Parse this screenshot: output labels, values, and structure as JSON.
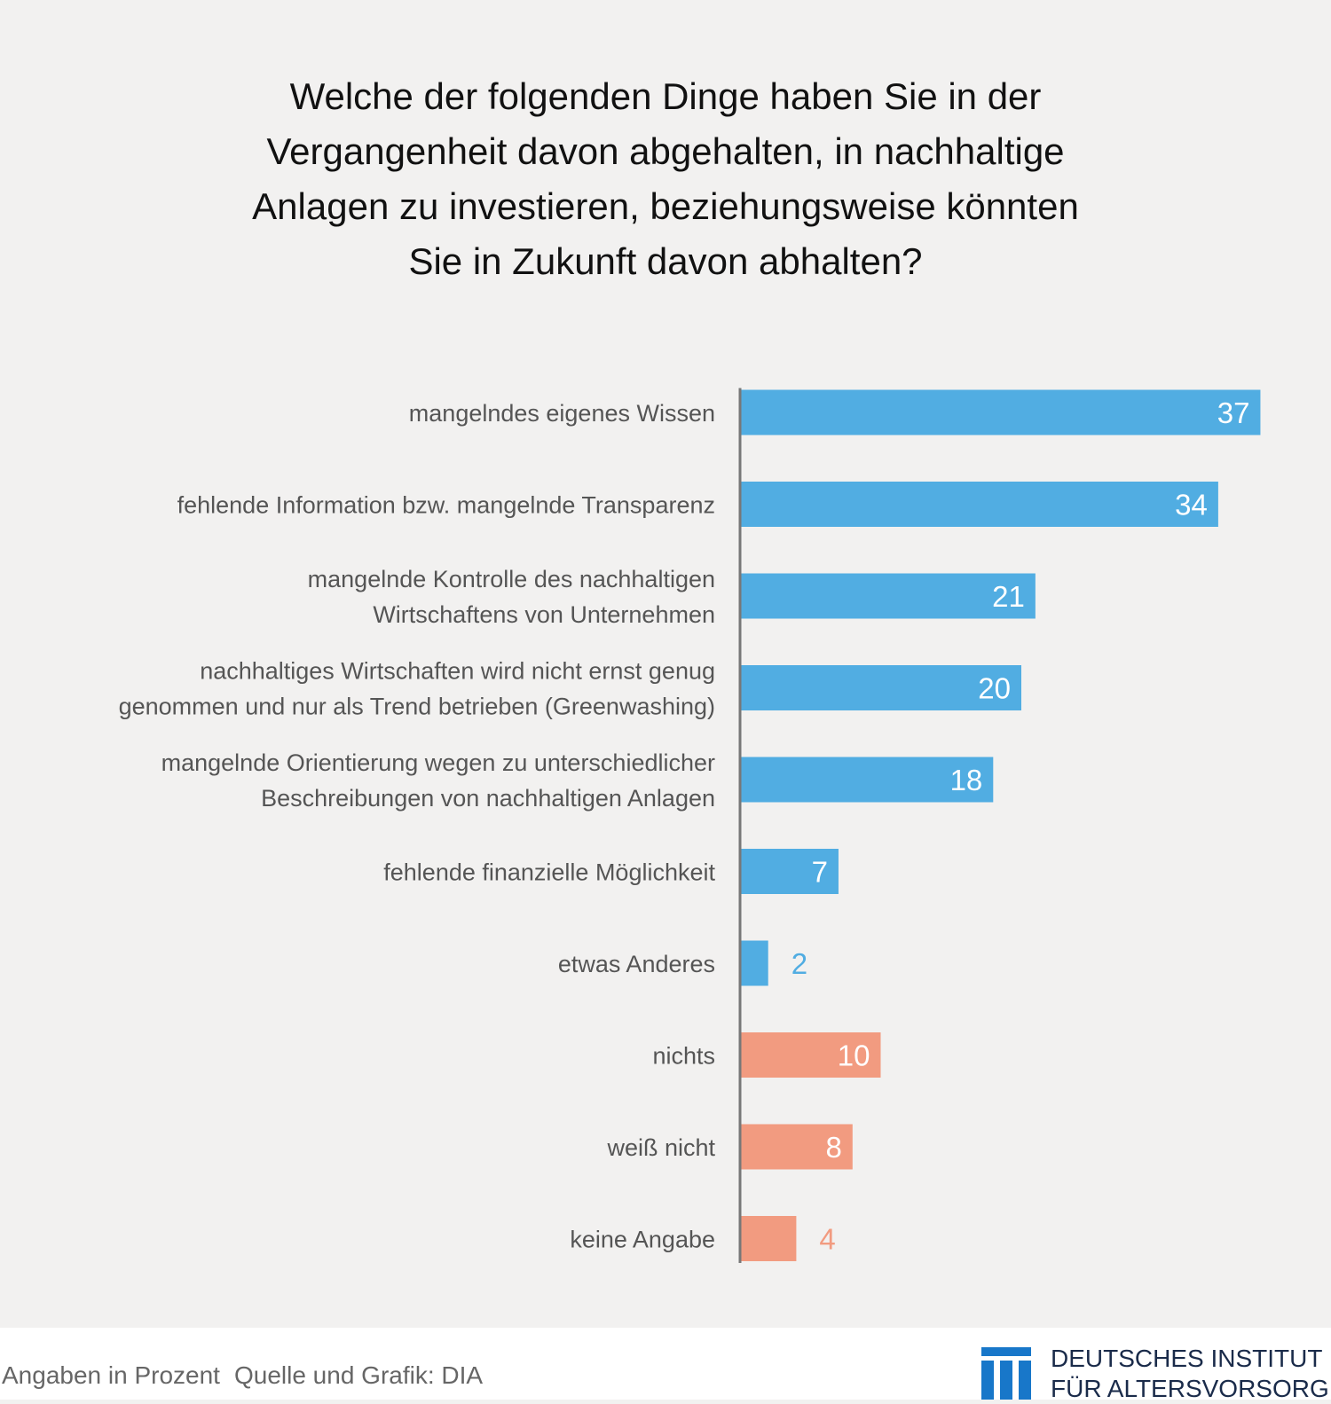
{
  "title_lines": [
    "Welche der folgenden Dinge haben Sie in der",
    "Vergangenheit davon abgehalten, in nachhaltige",
    "Anlagen zu investieren, beziehungsweise könnten",
    "Sie in Zukunft davon abhalten?"
  ],
  "colors": {
    "blue": "#51ade2",
    "orange": "#f29b80",
    "axis": "#777777",
    "label": "#555555"
  },
  "chart_data": {
    "type": "bar",
    "orientation": "horizontal",
    "title": "Welche der folgenden Dinge haben Sie in der Vergangenheit davon abgehalten, in nachhaltige Anlagen zu investieren, beziehungsweise könnten Sie in Zukunft davon abhalten?",
    "xlabel": "",
    "ylabel": "",
    "xlim": [
      0,
      40
    ],
    "grid": false,
    "categories": [
      [
        "mangelndes eigenes Wissen"
      ],
      [
        "fehlende Information bzw. mangelnde Transparenz"
      ],
      [
        "mangelnde Kontrolle des nachhaltigen",
        "Wirtschaftens von Unternehmen"
      ],
      [
        "nachhaltiges Wirtschaften wird nicht ernst genug",
        "genommen und nur als Trend betrieben (Greenwashing)"
      ],
      [
        "mangelnde Orientierung wegen zu unterschiedlicher",
        "Beschreibungen von nachhaltigen Anlagen"
      ],
      [
        "fehlende finanzielle Möglichkeit"
      ],
      [
        "etwas Anderes"
      ],
      [
        "nichts"
      ],
      [
        "weiß nicht"
      ],
      [
        "keine Angabe"
      ]
    ],
    "values": [
      37,
      34,
      21,
      20,
      18,
      7,
      2,
      10,
      8,
      4
    ],
    "groups": [
      "blue",
      "blue",
      "blue",
      "blue",
      "blue",
      "blue",
      "blue",
      "orange",
      "orange",
      "orange"
    ]
  },
  "footer": {
    "unit_note": "Angaben in Prozent",
    "source": "Quelle und Grafik: DIA"
  },
  "logo": {
    "line1": "DEUTSCHES INSTITUT",
    "line2": "FÜR ALTERSVORSORGE"
  }
}
